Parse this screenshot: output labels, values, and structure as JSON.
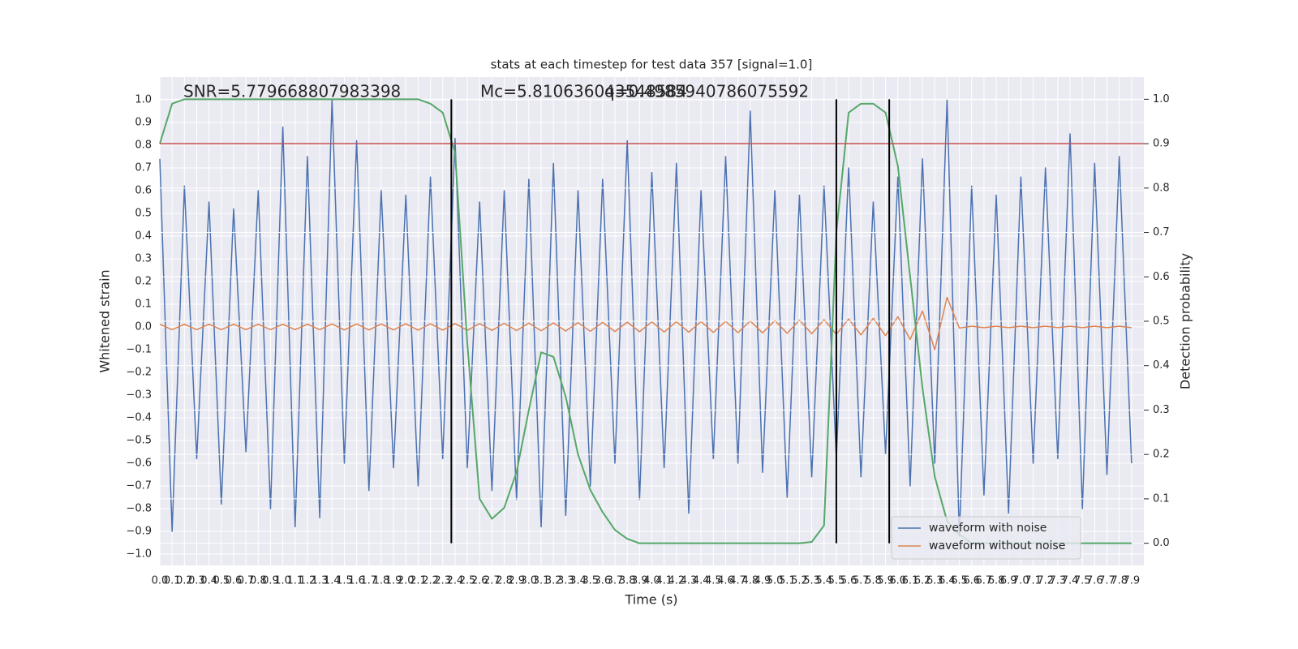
{
  "chart_data": {
    "type": "line",
    "title": "stats at each timestep for test data 357 [signal=1.0]",
    "xlabel": "Time (s)",
    "ylabel": "Whitened strain",
    "y2label": "Detection probability",
    "annotations": [
      "SNR=5.779668807983398",
      "Mc=5.810636043548584",
      "q=0.4985940786075592"
    ],
    "grid": true,
    "legend": "lower right",
    "xlim": [
      0,
      8.0
    ],
    "ylim": [
      -1.05,
      1.1
    ],
    "y2lim": [
      -0.05,
      1.05
    ],
    "xticks": [
      {
        "value": 0,
        "label": "0.0"
      },
      0.1,
      0.2,
      0.3,
      0.4,
      0.5,
      0.6,
      0.7,
      0.8,
      0.9,
      {
        "value": 1,
        "label": "1.0"
      },
      1.1,
      1.2,
      1.3,
      1.4,
      1.5,
      1.6,
      1.7,
      1.8,
      1.9,
      {
        "value": 2,
        "label": "2.0"
      },
      2.1,
      2.2,
      2.3,
      2.4,
      2.5,
      2.6,
      2.7,
      2.8,
      2.9,
      {
        "value": 3,
        "label": "3.0"
      },
      3.1,
      3.2,
      3.3,
      3.4,
      3.5,
      3.6,
      3.7,
      3.8,
      3.9,
      {
        "value": 4,
        "label": "4.0"
      },
      4.1,
      4.2,
      4.3,
      4.4,
      4.5,
      4.6,
      4.7,
      4.8,
      4.9,
      {
        "value": 5,
        "label": "5.0"
      },
      5.1,
      5.2,
      5.3,
      5.4,
      5.5,
      5.6,
      5.7,
      5.8,
      5.9,
      {
        "value": 6,
        "label": "6.0"
      },
      6.1,
      6.2,
      6.3,
      6.4,
      6.5,
      6.6,
      6.7,
      6.8,
      6.9,
      {
        "value": 7,
        "label": "7.0"
      },
      7.1,
      7.2,
      7.3,
      7.4,
      7.5,
      7.6,
      7.7,
      7.8,
      7.9
    ],
    "yticks": [
      {
        "value": -1,
        "label": "−1.0"
      },
      {
        "value": -0.9,
        "label": "−0.9"
      },
      {
        "value": -0.8,
        "label": "−0.8"
      },
      {
        "value": -0.7,
        "label": "−0.7"
      },
      {
        "value": -0.6,
        "label": "−0.6"
      },
      {
        "value": -0.5,
        "label": "−0.5"
      },
      {
        "value": -0.4,
        "label": "−0.4"
      },
      {
        "value": -0.3,
        "label": "−0.3"
      },
      {
        "value": -0.2,
        "label": "−0.2"
      },
      {
        "value": -0.1,
        "label": "−0.1"
      },
      {
        "value": 0,
        "label": "0.0"
      },
      0.1,
      0.2,
      0.3,
      0.4,
      0.5,
      0.6,
      0.7,
      0.8,
      0.9,
      {
        "value": 1,
        "label": "1.0"
      }
    ],
    "y2ticks": [
      {
        "value": 0,
        "label": "0.0"
      },
      0.1,
      0.2,
      0.3,
      0.4,
      0.5,
      0.6,
      0.7,
      0.8,
      0.9,
      {
        "value": 1,
        "label": "1.0"
      }
    ],
    "x": [
      0,
      0.1,
      0.2,
      0.3,
      0.4,
      0.5,
      0.6,
      0.7,
      0.8,
      0.9,
      1,
      1.1,
      1.2,
      1.3,
      1.4,
      1.5,
      1.6,
      1.7,
      1.8,
      1.9,
      2,
      2.1,
      2.2,
      2.3,
      2.4,
      2.5,
      2.6,
      2.7,
      2.8,
      2.9,
      3,
      3.1,
      3.2,
      3.3,
      3.4,
      3.5,
      3.6,
      3.7,
      3.8,
      3.9,
      4,
      4.1,
      4.2,
      4.3,
      4.4,
      4.5,
      4.6,
      4.7,
      4.8,
      4.9,
      5,
      5.1,
      5.2,
      5.3,
      5.4,
      5.5,
      5.6,
      5.7,
      5.8,
      5.9,
      6,
      6.1,
      6.2,
      6.3,
      6.4,
      6.5,
      6.6,
      6.7,
      6.8,
      6.9,
      7,
      7.1,
      7.2,
      7.3,
      7.4,
      7.5,
      7.6,
      7.7,
      7.8,
      7.9
    ],
    "series": [
      {
        "name": "waveform with noise",
        "color": "#4c72b0",
        "values": [
          0.74,
          -0.9,
          0.62,
          -0.58,
          0.55,
          -0.78,
          0.52,
          -0.55,
          0.6,
          -0.8,
          0.88,
          -0.88,
          0.75,
          -0.84,
          1.0,
          -0.6,
          0.82,
          -0.72,
          0.6,
          -0.62,
          0.58,
          -0.7,
          0.66,
          -0.58,
          0.83,
          -0.62,
          0.55,
          -0.72,
          0.6,
          -0.76,
          0.65,
          -0.88,
          0.72,
          -0.83,
          0.6,
          -0.7,
          0.65,
          -0.6,
          0.82,
          -0.76,
          0.68,
          -0.62,
          0.72,
          -0.82,
          0.6,
          -0.58,
          0.75,
          -0.6,
          0.95,
          -0.64,
          0.6,
          -0.75,
          0.58,
          -0.66,
          0.62,
          -0.58,
          0.7,
          -0.66,
          0.55,
          -0.56,
          0.66,
          -0.7,
          0.74,
          -0.6,
          1.0,
          -0.92,
          0.62,
          -0.74,
          0.58,
          -0.82,
          0.66,
          -0.6,
          0.7,
          -0.58,
          0.85,
          -0.8,
          0.72,
          -0.65,
          0.75,
          -0.6
        ]
      },
      {
        "name": "waveform without noise",
        "color": "#dd8452",
        "values": [
          0.012,
          -0.012,
          0.012,
          -0.012,
          0.012,
          -0.012,
          0.012,
          -0.012,
          0.012,
          -0.012,
          0.012,
          -0.012,
          0.012,
          -0.012,
          0.013,
          -0.013,
          0.013,
          -0.013,
          0.013,
          -0.013,
          0.014,
          -0.014,
          0.014,
          -0.014,
          0.015,
          -0.015,
          0.015,
          -0.015,
          0.016,
          -0.016,
          0.017,
          -0.017,
          0.018,
          -0.018,
          0.019,
          -0.019,
          0.02,
          -0.02,
          0.021,
          -0.021,
          0.022,
          -0.022,
          0.023,
          -0.023,
          0.024,
          -0.024,
          0.025,
          -0.025,
          0.026,
          -0.026,
          0.028,
          -0.028,
          0.03,
          -0.03,
          0.032,
          -0.032,
          0.035,
          -0.035,
          0.038,
          -0.038,
          0.045,
          -0.055,
          0.07,
          -0.1,
          0.13,
          -0.005,
          0.003,
          -0.003,
          0.003,
          -0.003,
          0.003,
          -0.003,
          0.003,
          -0.003,
          0.003,
          -0.003,
          0.003,
          -0.003,
          0.003,
          -0.003
        ]
      }
    ],
    "probability": {
      "color": "#55a868",
      "axis": "y2",
      "values": [
        0.9,
        0.99,
        1.0,
        1.0,
        1.0,
        1.0,
        1.0,
        1.0,
        1.0,
        1.0,
        1.0,
        1.0,
        1.0,
        1.0,
        1.0,
        1.0,
        1.0,
        1.0,
        1.0,
        1.0,
        1.0,
        1.0,
        0.99,
        0.97,
        0.88,
        0.45,
        0.1,
        0.055,
        0.08,
        0.16,
        0.3,
        0.43,
        0.42,
        0.33,
        0.2,
        0.12,
        0.07,
        0.03,
        0.01,
        0.0,
        0.0,
        0.0,
        0.0,
        0.0,
        0.0,
        0.0,
        0.0,
        0.0,
        0.0,
        0.0,
        0.0,
        0.0,
        0.0,
        0.003,
        0.04,
        0.7,
        0.97,
        0.99,
        0.99,
        0.97,
        0.85,
        0.6,
        0.35,
        0.15,
        0.05,
        0.02,
        0.0,
        0.0,
        0.0,
        0.0,
        0.0,
        0.0,
        0.0,
        0.0,
        0.0,
        0.0,
        0.0,
        0.0,
        0.0,
        0.0
      ]
    },
    "threshold": {
      "value": 0.9,
      "axis": "y2",
      "color": "#c44e52"
    },
    "vlines": {
      "color": "#000000",
      "values": [
        2.37,
        5.5,
        5.93
      ]
    }
  }
}
